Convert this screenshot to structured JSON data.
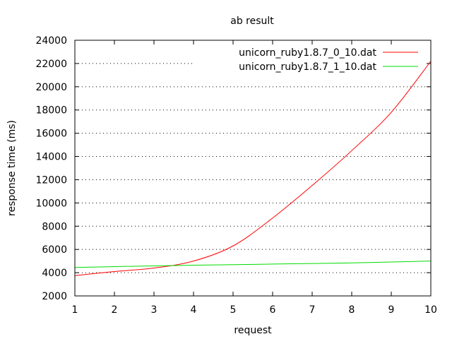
{
  "chart_data": {
    "type": "line",
    "title": "ab result",
    "xlabel": "request",
    "ylabel": "response time (ms)",
    "xlim": [
      1,
      10
    ],
    "ylim": [
      2000,
      24000
    ],
    "xticks": [
      1,
      2,
      3,
      4,
      5,
      6,
      7,
      8,
      9,
      10
    ],
    "yticks": [
      2000,
      4000,
      6000,
      8000,
      10000,
      12000,
      14000,
      16000,
      18000,
      20000,
      22000,
      24000
    ],
    "grid": "horizontal-dotted",
    "legend_position": "top-right",
    "series": [
      {
        "name": "unicorn_ruby1.8.7_0_10.dat",
        "color": "#ff0000",
        "x": [
          1,
          2,
          3,
          4,
          5,
          6,
          7,
          8,
          9,
          10
        ],
        "values": [
          3750,
          4100,
          4400,
          5000,
          6300,
          8700,
          11500,
          14500,
          17800,
          22200
        ]
      },
      {
        "name": "unicorn_ruby1.8.7_1_10.dat",
        "color": "#00dd00",
        "x": [
          1,
          2,
          3,
          4,
          5,
          6,
          7,
          8,
          9,
          10
        ],
        "values": [
          4450,
          4520,
          4580,
          4640,
          4690,
          4740,
          4790,
          4840,
          4920,
          5000
        ]
      }
    ]
  }
}
